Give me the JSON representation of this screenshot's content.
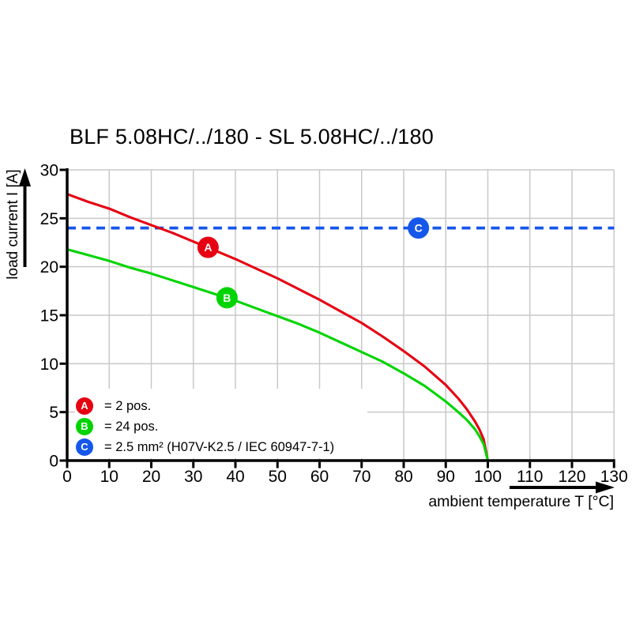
{
  "title": "BLF 5.08HC/../180 - SL 5.08HC/../180",
  "axes": {
    "x_label": "ambient temperature T [°C]",
    "y_label": "load current I [A]"
  },
  "legend": [
    {
      "key": "A",
      "color": "#e60012",
      "text": "= 2 pos."
    },
    {
      "key": "B",
      "color": "#00d400",
      "text": "= 24 pos."
    },
    {
      "key": "C",
      "color": "#1557ea",
      "text": "= 2.5 mm² (H07V-K2.5 / IEC 60947-7-1)"
    }
  ],
  "colors": {
    "grid": "#c9c9c9",
    "axis": "#000000",
    "series_a": "#e60012",
    "series_b": "#00d400",
    "series_c": "#1557ea"
  },
  "chart_data": {
    "type": "line",
    "title": "BLF 5.08HC/../180 - SL 5.08HC/../180",
    "xlabel": "ambient temperature T [°C]",
    "ylabel": "load current I [A]",
    "xlim": [
      0,
      130
    ],
    "ylim": [
      0,
      30
    ],
    "x_ticks": [
      0,
      10,
      20,
      30,
      40,
      50,
      60,
      70,
      80,
      90,
      100,
      110,
      120,
      130
    ],
    "y_ticks": [
      0,
      5,
      10,
      15,
      20,
      25,
      30
    ],
    "grid": true,
    "legend_position": "lower-left-inside",
    "series": [
      {
        "name": "A",
        "label": "2 pos.",
        "color": "#e60012",
        "style": "solid",
        "marker_at": [
          33.5,
          22.0
        ],
        "points": [
          [
            0,
            27.5
          ],
          [
            5,
            26.7
          ],
          [
            10,
            26.0
          ],
          [
            15,
            25.1
          ],
          [
            20,
            24.3
          ],
          [
            25,
            23.5
          ],
          [
            30,
            22.6
          ],
          [
            35,
            21.7
          ],
          [
            40,
            20.8
          ],
          [
            45,
            19.8
          ],
          [
            50,
            18.8
          ],
          [
            55,
            17.7
          ],
          [
            60,
            16.6
          ],
          [
            65,
            15.4
          ],
          [
            70,
            14.2
          ],
          [
            75,
            12.8
          ],
          [
            80,
            11.3
          ],
          [
            85,
            9.7
          ],
          [
            90,
            7.8
          ],
          [
            93,
            6.4
          ],
          [
            95,
            5.3
          ],
          [
            97,
            4.0
          ],
          [
            98,
            3.2
          ],
          [
            99,
            2.2
          ],
          [
            100,
            0
          ]
        ]
      },
      {
        "name": "B",
        "label": "24 pos.",
        "color": "#00d400",
        "style": "solid",
        "marker_at": [
          38,
          16.8
        ],
        "points": [
          [
            0,
            21.8
          ],
          [
            5,
            21.2
          ],
          [
            10,
            20.6
          ],
          [
            15,
            19.9
          ],
          [
            20,
            19.3
          ],
          [
            25,
            18.6
          ],
          [
            30,
            17.9
          ],
          [
            35,
            17.2
          ],
          [
            40,
            16.5
          ],
          [
            45,
            15.7
          ],
          [
            50,
            14.9
          ],
          [
            55,
            14.1
          ],
          [
            60,
            13.2
          ],
          [
            65,
            12.2
          ],
          [
            70,
            11.2
          ],
          [
            75,
            10.2
          ],
          [
            80,
            9.0
          ],
          [
            85,
            7.7
          ],
          [
            90,
            6.1
          ],
          [
            93,
            5.0
          ],
          [
            95,
            4.2
          ],
          [
            97,
            3.2
          ],
          [
            98,
            2.5
          ],
          [
            99,
            1.7
          ],
          [
            100,
            0
          ]
        ]
      },
      {
        "name": "C",
        "label": "2.5 mm² (H07V-K2.5 / IEC 60947-7-1)",
        "color": "#1557ea",
        "style": "dashed",
        "marker_at": [
          83.5,
          24
        ],
        "points": [
          [
            0,
            24
          ],
          [
            130,
            24
          ]
        ]
      }
    ]
  }
}
